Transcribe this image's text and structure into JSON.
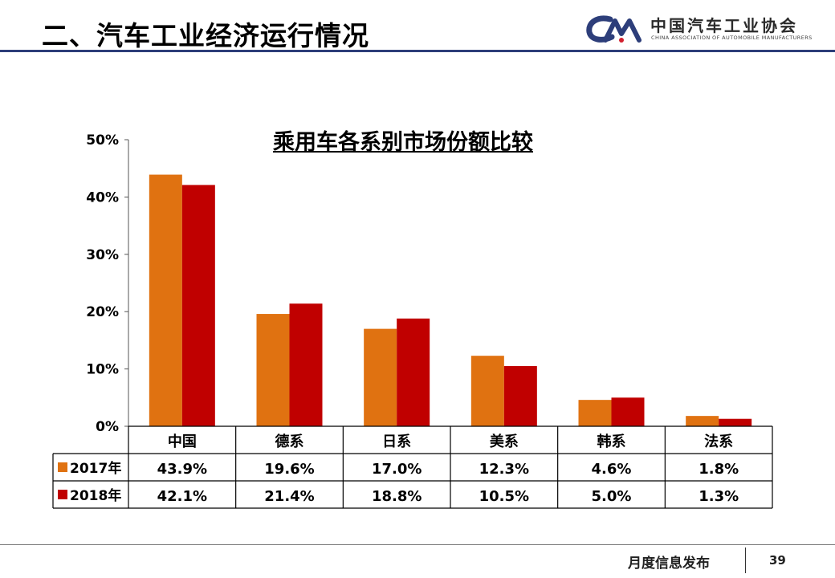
{
  "header": {
    "title": "二、汽车工业经济运行情况"
  },
  "logo": {
    "mark_text": "CAM",
    "name_cn": "中国汽车工业协会",
    "name_en": "CHINA ASSOCIATION OF AUTOMOBILE MANUFACTURERS"
  },
  "footer": {
    "text": "月度信息发布",
    "page": "39"
  },
  "colors": {
    "series_2017": "#e07211",
    "series_2018": "#c00000",
    "header_rule": "#2d3e7a"
  },
  "chart_data": {
    "type": "bar",
    "title": "乘用车各系别市场份额比较",
    "categories": [
      "中国",
      "德系",
      "日系",
      "美系",
      "韩系",
      "法系"
    ],
    "series": [
      {
        "name": "2017年",
        "values": [
          43.9,
          19.6,
          17.0,
          12.3,
          4.6,
          1.8
        ],
        "labels": [
          "43.9%",
          "19.6%",
          "17.0%",
          "12.3%",
          "4.6%",
          "1.8%"
        ],
        "color": "#e07211"
      },
      {
        "name": "2018年",
        "values": [
          42.1,
          21.4,
          18.8,
          10.5,
          5.0,
          1.3
        ],
        "labels": [
          "42.1%",
          "21.4%",
          "18.8%",
          "10.5%",
          "5.0%",
          "1.3%"
        ],
        "color": "#c00000"
      }
    ],
    "ylim": [
      0,
      50
    ],
    "yticks": [
      "0%",
      "10%",
      "20%",
      "30%",
      "40%",
      "50%"
    ],
    "grid": false,
    "legend": "data-table"
  }
}
